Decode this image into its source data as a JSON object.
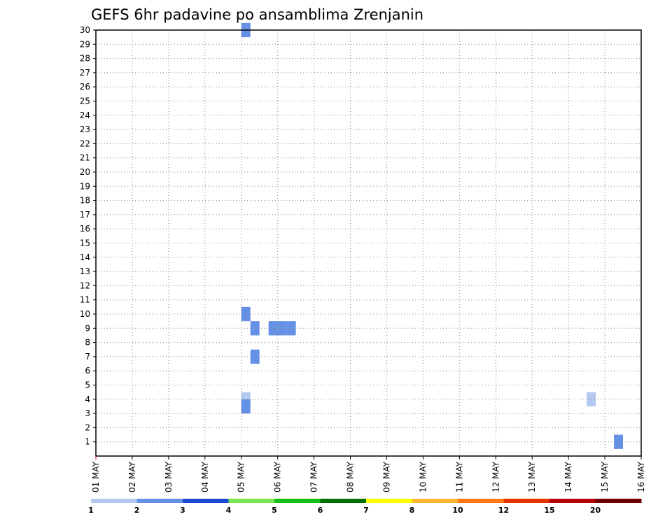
{
  "chart_data": {
    "type": "heatmap",
    "title": "GEFS 6hr padavine po ansamblima Zrenjanin",
    "x_ticks": [
      "01 MAY",
      "02 MAY",
      "03 MAY",
      "04 MAY",
      "05 MAY",
      "06 MAY",
      "07 MAY",
      "08 MAY",
      "09 MAY",
      "10 MAY",
      "11 MAY",
      "12 MAY",
      "13 MAY",
      "14 MAY",
      "15 MAY",
      "16 MAY"
    ],
    "y_ticks": [
      "1",
      "2",
      "3",
      "4",
      "5",
      "6",
      "7",
      "8",
      "9",
      "10",
      "11",
      "12",
      "13",
      "14",
      "15",
      "16",
      "17",
      "18",
      "19",
      "20",
      "21",
      "22",
      "23",
      "24",
      "25",
      "26",
      "27",
      "28",
      "29",
      "30"
    ],
    "ylim": [
      0,
      30
    ],
    "step_hours": 6,
    "grid": "dotted",
    "colorbar": {
      "labels": [
        "1",
        "2",
        "3",
        "4",
        "5",
        "6",
        "7",
        "8",
        "10",
        "12",
        "15",
        "20"
      ],
      "colors": [
        "#b4c8f0",
        "#6491e6",
        "#1e46d2",
        "#78e650",
        "#14be14",
        "#006e00",
        "#ffff00",
        "#ffb432",
        "#ff7814",
        "#e63200",
        "#b40000",
        "#6e0000"
      ]
    },
    "cells": [
      [
        5.0,
        4.0,
        0,
        0
      ],
      [
        5.0,
        3.5,
        1,
        1
      ],
      [
        5.0,
        10.0,
        1,
        1
      ],
      [
        5.25,
        9.0,
        1,
        1
      ],
      [
        5.25,
        7.0,
        1,
        1
      ],
      [
        5.75,
        9.0,
        1,
        1
      ],
      [
        6.0,
        9.0,
        1,
        1
      ],
      [
        6.25,
        9.0,
        1,
        1
      ],
      [
        5.0,
        30.0,
        1,
        1
      ],
      [
        14.5,
        4.0,
        0,
        3
      ],
      [
        15.25,
        1.0,
        1,
        1
      ]
    ],
    "cells_note": "[x_day, y_member, fmin, fmax]"
  }
}
